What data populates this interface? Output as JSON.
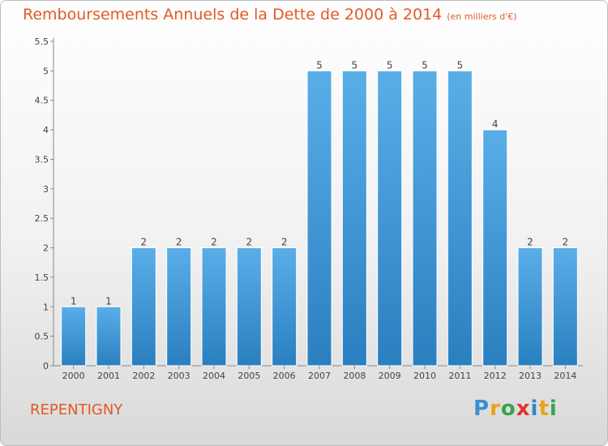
{
  "title": "Remboursements Annuels de la Dette de 2000 à 2014",
  "subtitle": "(en milliers d'€)",
  "city": "REPENTIGNY",
  "logo": {
    "letters": [
      "P",
      "r",
      "o",
      "x",
      "i",
      "t",
      "i"
    ]
  },
  "colors": {
    "title": "#e05a25",
    "bar_top": "#5aaee8",
    "bar_bottom": "#2a7fc0"
  },
  "chart_data": {
    "type": "bar",
    "title": "Remboursements Annuels de la Dette de 2000 à 2014",
    "xlabel": "",
    "ylabel": "",
    "categories": [
      "2000",
      "2001",
      "2002",
      "2003",
      "2004",
      "2005",
      "2006",
      "2007",
      "2008",
      "2009",
      "2010",
      "2011",
      "2012",
      "2013",
      "2014"
    ],
    "values": [
      1,
      1,
      2,
      2,
      2,
      2,
      2,
      5,
      5,
      5,
      5,
      5,
      4,
      2,
      2
    ],
    "data_labels": [
      "1",
      "1",
      "2",
      "2",
      "2",
      "2",
      "2",
      "5",
      "5",
      "5",
      "5",
      "5",
      "4",
      "2",
      "2"
    ],
    "ylim": [
      0,
      5.5
    ],
    "yticks": [
      "0",
      "0.5",
      "1",
      "1.5",
      "2",
      "2.5",
      "3",
      "3.5",
      "4",
      "4.5",
      "5",
      "5.5"
    ],
    "grid": false,
    "legend": "none"
  }
}
